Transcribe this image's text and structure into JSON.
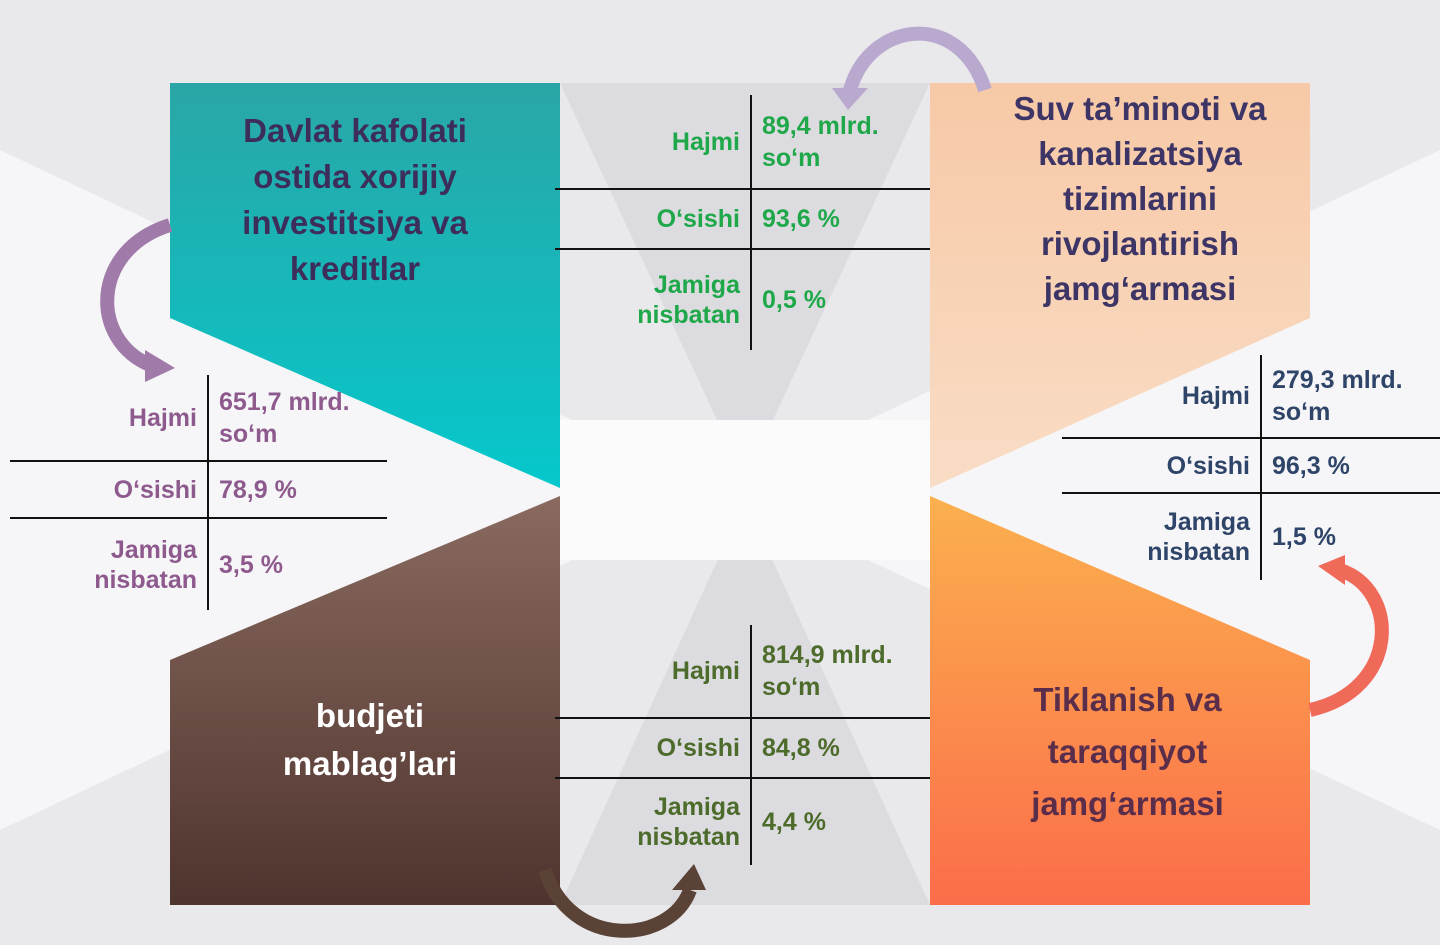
{
  "blocks": [
    {
      "title": "Davlat kafolati ostida xorijiy investitsiya va kreditlar"
    },
    {
      "title": "Suv ta’minoti va kanalizatsiya tizimlarini rivojlantirish jamg‘armasi"
    },
    {
      "title": "budjeti mablag’lari"
    },
    {
      "title": "Tiklanish va taraqqiyot jamg‘armasi"
    }
  ],
  "tables": [
    {
      "rows": [
        {
          "label": "Hajmi",
          "value": "89,4 mlrd. so‘m"
        },
        {
          "label": "O‘sishi",
          "value": "93,6 %"
        },
        {
          "label": "Jamiga nisbatan",
          "value": "0,5 %"
        }
      ]
    },
    {
      "rows": [
        {
          "label": "Hajmi",
          "value": "651,7 mlrd. so‘m"
        },
        {
          "label": "O‘sishi",
          "value": "78,9 %"
        },
        {
          "label": "Jamiga nisbatan",
          "value": "3,5 %"
        }
      ]
    },
    {
      "rows": [
        {
          "label": "Hajmi",
          "value": "279,3 mlrd. so‘m"
        },
        {
          "label": "O‘sishi",
          "value": "96,3 %"
        },
        {
          "label": "Jamiga nisbatan",
          "value": "1,5 %"
        }
      ]
    },
    {
      "rows": [
        {
          "label": "Hajmi",
          "value": "814,9 mlrd. so‘m"
        },
        {
          "label": "O‘sishi",
          "value": "84,8 %"
        },
        {
          "label": "Jamiga nisbatan",
          "value": "4,4 %"
        }
      ]
    }
  ]
}
